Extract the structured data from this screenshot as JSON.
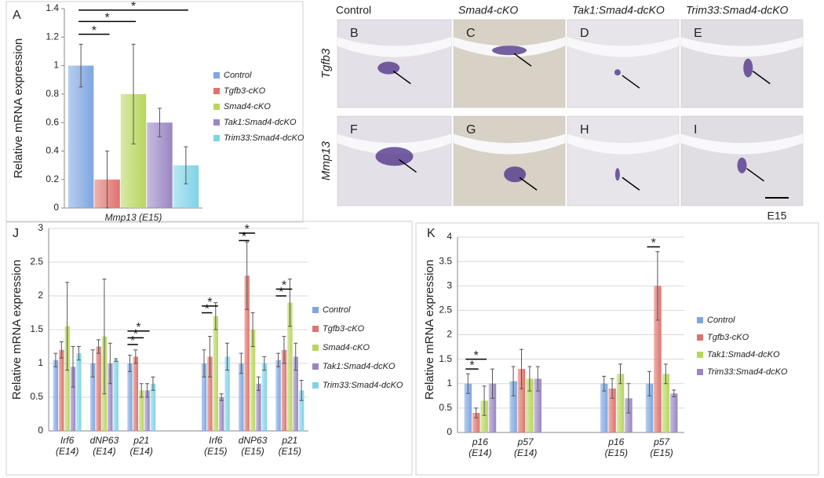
{
  "chart_data": [
    {
      "type": "bar",
      "panel_label": "A",
      "y_label": "Relative mRNA expression",
      "categories": [
        "Mmp13 (E15)"
      ],
      "series": [
        {
          "name": "Control",
          "color": "#7ea6e0",
          "values": [
            1.0
          ],
          "errors": [
            0.15
          ]
        },
        {
          "name": "Tgfb3-cKO",
          "color": "#e0736e",
          "values": [
            0.2
          ],
          "errors": [
            0.2
          ]
        },
        {
          "name": "Smad4-cKO",
          "color": "#b8d65e",
          "values": [
            0.8
          ],
          "errors": [
            0.35
          ]
        },
        {
          "name": "Tak1:Smad4-dcKO",
          "color": "#9a85c4",
          "values": [
            0.6
          ],
          "errors": [
            0.1
          ]
        },
        {
          "name": "Trim33:Smad4-dcKO",
          "color": "#7fd3e8",
          "values": [
            0.3
          ],
          "errors": [
            0.13
          ]
        }
      ],
      "ylim": [
        0,
        1.4
      ],
      "yticks": [
        0,
        0.2,
        0.4,
        0.6,
        0.8,
        1,
        1.2,
        1.4
      ],
      "grid": false,
      "legend": "right",
      "annotations": [
        "*",
        "*",
        "*"
      ]
    },
    {
      "type": "bar",
      "panel_label": "J",
      "y_label": "Relative mRNA expression",
      "categories": [
        "Irf6 (E14)",
        "dNP63 (E14)",
        "p21 (E14)",
        null,
        "Irf6 (E15)",
        "dNP63 (E15)",
        "p21 (E15)"
      ],
      "series": [
        {
          "name": "Control",
          "color": "#7ea6e0",
          "values": [
            1.05,
            1.0,
            1.0,
            null,
            1.0,
            1.0,
            1.05
          ],
          "errors": [
            0.1,
            0.2,
            0.12,
            null,
            0.2,
            0.15,
            0.1
          ]
        },
        {
          "name": "Tgfb3-cKO",
          "color": "#e0736e",
          "values": [
            1.2,
            1.25,
            1.1,
            null,
            1.1,
            2.3,
            1.2
          ],
          "errors": [
            0.12,
            0.1,
            0.1,
            null,
            0.3,
            0.5,
            0.2
          ]
        },
        {
          "name": "Smad4-cKO",
          "color": "#b8d65e",
          "values": [
            1.55,
            1.4,
            0.6,
            null,
            1.7,
            1.5,
            1.9
          ],
          "errors": [
            0.65,
            0.85,
            0.1,
            null,
            0.2,
            0.25,
            0.35
          ]
        },
        {
          "name": "Tak1:Smad4-dcKO",
          "color": "#9a85c4",
          "values": [
            0.95,
            1.0,
            0.6,
            null,
            0.5,
            0.7,
            1.1
          ],
          "errors": [
            0.3,
            0.3,
            0.1,
            null,
            0.05,
            0.1,
            0.2
          ]
        },
        {
          "name": "Trim33:Smad4-dcKO",
          "color": "#7fd3e8",
          "values": [
            1.15,
            1.05,
            0.7,
            null,
            1.1,
            1.0,
            0.6
          ],
          "errors": [
            0.1,
            0.02,
            0.1,
            null,
            0.2,
            0.1,
            0.15
          ]
        }
      ],
      "ylim": [
        0,
        3
      ],
      "yticks": [
        0,
        0.5,
        1,
        1.5,
        2,
        2.5,
        3
      ],
      "grid": true,
      "legend": "right",
      "annotations": [
        "*",
        "*",
        "*",
        "*",
        "*",
        "*",
        "*",
        "*",
        "*"
      ]
    },
    {
      "type": "bar",
      "panel_label": "K",
      "y_label": "Relative mRNA expression",
      "categories": [
        "p16 (E14)",
        "p57 (E14)",
        null,
        "p16 (E15)",
        "p57 (E15)"
      ],
      "series": [
        {
          "name": "Control",
          "color": "#7ea6e0",
          "values": [
            1.0,
            1.05,
            null,
            1.0,
            1.0
          ],
          "errors": [
            0.2,
            0.3,
            null,
            0.15,
            0.25
          ]
        },
        {
          "name": "Tgfb3-cKO",
          "color": "#e0736e",
          "values": [
            0.4,
            1.3,
            null,
            0.9,
            3.0
          ],
          "errors": [
            0.1,
            0.4,
            null,
            0.2,
            0.7
          ]
        },
        {
          "name": "Tak1:Smad4-dcKO",
          "color": "#b8d65e",
          "values": [
            0.65,
            1.1,
            null,
            1.2,
            1.2
          ],
          "errors": [
            0.3,
            0.25,
            null,
            0.2,
            0.2
          ]
        },
        {
          "name": "Trim33:Smad4-dcKO",
          "color": "#9a85c4",
          "values": [
            1.0,
            1.1,
            null,
            0.7,
            0.8
          ],
          "errors": [
            0.3,
            0.25,
            null,
            0.3,
            0.07
          ]
        }
      ],
      "ylim": [
        0,
        4
      ],
      "yticks": [
        0,
        0.5,
        1,
        1.5,
        2,
        2.5,
        3,
        3.5,
        4
      ],
      "grid": true,
      "legend": "right",
      "annotations": [
        "*",
        "*",
        "*"
      ]
    }
  ],
  "image_panels": {
    "column_headers": [
      "Control",
      "Smad4-cKO",
      "Tak1:Smad4-dcKO",
      "Trim33:Smad4-dcKO"
    ],
    "row_labels": [
      "Tgfb3",
      "Mmp13"
    ],
    "panel_letters": [
      "B",
      "C",
      "D",
      "E",
      "F",
      "G",
      "H",
      "I"
    ],
    "scale_label": "E15"
  }
}
